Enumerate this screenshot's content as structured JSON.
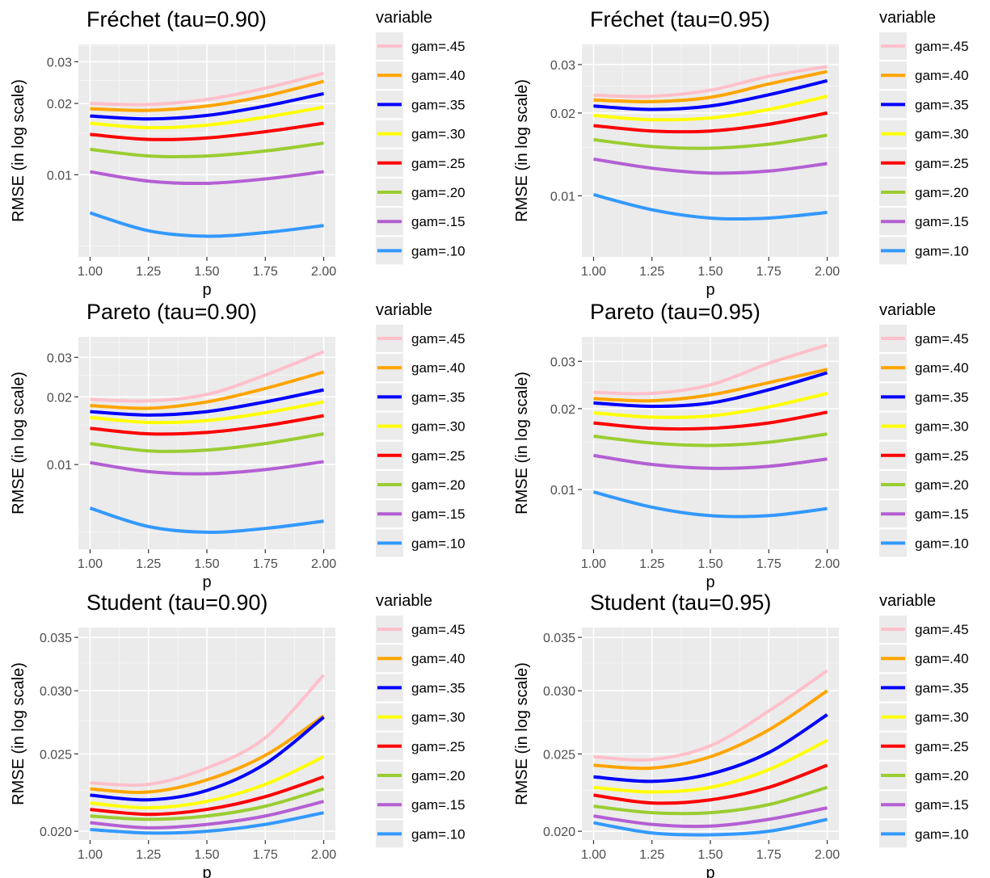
{
  "figure": {
    "legend_title": "variable",
    "xlabel": "p",
    "ylabel": "RMSE (in log scale)",
    "x_ticks": [
      "1.00",
      "1.25",
      "1.50",
      "1.75",
      "2.00"
    ],
    "colors": {
      "gam=.45": "#ffc0cb",
      "gam=.40": "#ffa500",
      "gam=.35": "#0000ff",
      "gam=.30": "#ffff00",
      "gam=.25": "#ff0000",
      "gam=.20": "#9acd32",
      "gam=.15": "#b45fd3",
      "gam=.10": "#3399ff"
    },
    "panel_background": "#ebebeb",
    "grid_color": "#ffffff"
  },
  "chart_data": [
    {
      "type": "line",
      "title": "Fréchet (tau=0.90)",
      "xlabel": "p",
      "ylabel": "RMSE (in log scale)",
      "y_scale": "log",
      "xlim": [
        0.95,
        2.05
      ],
      "ylim": [
        0.0045,
        0.0355
      ],
      "yticks": [
        0.01,
        0.02,
        0.03
      ],
      "ytick_labels": [
        "0.01",
        "0.02",
        "0.03"
      ],
      "x": [
        1.0,
        1.25,
        1.5,
        1.75,
        2.0
      ],
      "legend": "right",
      "series": [
        {
          "name": "gam=.45",
          "values": [
            0.02,
            0.0198,
            0.0208,
            0.0232,
            0.0268
          ]
        },
        {
          "name": "gam=.40",
          "values": [
            0.019,
            0.0187,
            0.0195,
            0.0215,
            0.0248
          ]
        },
        {
          "name": "gam=.35",
          "values": [
            0.0177,
            0.0172,
            0.0178,
            0.0195,
            0.022
          ]
        },
        {
          "name": "gam=.30",
          "values": [
            0.0165,
            0.0158,
            0.0162,
            0.0175,
            0.0193
          ]
        },
        {
          "name": "gam=.25",
          "values": [
            0.0148,
            0.0141,
            0.0143,
            0.0152,
            0.0165
          ]
        },
        {
          "name": "gam=.20",
          "values": [
            0.0128,
            0.012,
            0.012,
            0.0126,
            0.0136
          ]
        },
        {
          "name": "gam=.15",
          "values": [
            0.0103,
            0.0094,
            0.0092,
            0.0096,
            0.0103
          ]
        },
        {
          "name": "gam=.10",
          "values": [
            0.0069,
            0.0058,
            0.0055,
            0.0057,
            0.0061
          ]
        }
      ]
    },
    {
      "type": "line",
      "title": "Fréchet (tau=0.95)",
      "xlabel": "p",
      "ylabel": "RMSE (in log scale)",
      "y_scale": "log",
      "xlim": [
        0.95,
        2.05
      ],
      "ylim": [
        0.006,
        0.0355
      ],
      "yticks": [
        0.01,
        0.02,
        0.03
      ],
      "ytick_labels": [
        "0.01",
        "0.02",
        "0.03"
      ],
      "x": [
        1.0,
        1.25,
        1.5,
        1.75,
        2.0
      ],
      "legend": "right",
      "series": [
        {
          "name": "gam=.45",
          "values": [
            0.0232,
            0.023,
            0.0242,
            0.0272,
            0.0295
          ]
        },
        {
          "name": "gam=.40",
          "values": [
            0.0223,
            0.022,
            0.0228,
            0.0255,
            0.0283
          ]
        },
        {
          "name": "gam=.35",
          "values": [
            0.0212,
            0.0206,
            0.0212,
            0.0233,
            0.0262
          ]
        },
        {
          "name": "gam=.30",
          "values": [
            0.0196,
            0.0189,
            0.0192,
            0.0206,
            0.023
          ]
        },
        {
          "name": "gam=.25",
          "values": [
            0.018,
            0.0172,
            0.0172,
            0.0182,
            0.02
          ]
        },
        {
          "name": "gam=.20",
          "values": [
            0.016,
            0.0151,
            0.0149,
            0.0154,
            0.0166
          ]
        },
        {
          "name": "gam=.15",
          "values": [
            0.0136,
            0.0126,
            0.0121,
            0.0123,
            0.0131
          ]
        },
        {
          "name": "gam=.10",
          "values": [
            0.0101,
            0.0089,
            0.0083,
            0.0083,
            0.0087
          ]
        }
      ]
    },
    {
      "type": "line",
      "title": "Pareto (tau=0.90)",
      "xlabel": "p",
      "ylabel": "RMSE (in log scale)",
      "y_scale": "log",
      "xlim": [
        0.95,
        2.05
      ],
      "ylim": [
        0.0042,
        0.037
      ],
      "yticks": [
        0.01,
        0.02,
        0.03
      ],
      "ytick_labels": [
        "0.01",
        "0.02",
        "0.03"
      ],
      "x": [
        1.0,
        1.25,
        1.5,
        1.75,
        2.0
      ],
      "legend": "right",
      "series": [
        {
          "name": "gam=.45",
          "values": [
            0.0195,
            0.0192,
            0.0205,
            0.025,
            0.0318
          ]
        },
        {
          "name": "gam=.40",
          "values": [
            0.0183,
            0.0178,
            0.019,
            0.0218,
            0.0258
          ]
        },
        {
          "name": "gam=.35",
          "values": [
            0.0172,
            0.0166,
            0.0172,
            0.019,
            0.0215
          ]
        },
        {
          "name": "gam=.30",
          "values": [
            0.0162,
            0.0154,
            0.0157,
            0.017,
            0.019
          ]
        },
        {
          "name": "gam=.25",
          "values": [
            0.0145,
            0.0137,
            0.0139,
            0.0149,
            0.0165
          ]
        },
        {
          "name": "gam=.20",
          "values": [
            0.0124,
            0.0115,
            0.0116,
            0.0124,
            0.0137
          ]
        },
        {
          "name": "gam=.15",
          "values": [
            0.0102,
            0.0093,
            0.0091,
            0.0095,
            0.0103
          ]
        },
        {
          "name": "gam=.10",
          "values": [
            0.0064,
            0.0053,
            0.005,
            0.0052,
            0.0056
          ]
        }
      ]
    },
    {
      "type": "line",
      "title": "Pareto (tau=0.95)",
      "xlabel": "p",
      "ylabel": "RMSE (in log scale)",
      "y_scale": "log",
      "xlim": [
        0.95,
        2.05
      ],
      "ylim": [
        0.006,
        0.037
      ],
      "yticks": [
        0.01,
        0.02,
        0.03
      ],
      "ytick_labels": [
        "0.01",
        "0.02",
        "0.03"
      ],
      "x": [
        1.0,
        1.25,
        1.5,
        1.75,
        2.0
      ],
      "legend": "right",
      "series": [
        {
          "name": "gam=.45",
          "values": [
            0.023,
            0.0228,
            0.0245,
            0.0295,
            0.0345
          ]
        },
        {
          "name": "gam=.40",
          "values": [
            0.0218,
            0.0214,
            0.0225,
            0.025,
            0.028
          ]
        },
        {
          "name": "gam=.35",
          "values": [
            0.021,
            0.0204,
            0.021,
            0.0235,
            0.0272
          ]
        },
        {
          "name": "gam=.30",
          "values": [
            0.0193,
            0.0186,
            0.0188,
            0.0203,
            0.0228
          ]
        },
        {
          "name": "gam=.25",
          "values": [
            0.0177,
            0.0169,
            0.0169,
            0.0177,
            0.0194
          ]
        },
        {
          "name": "gam=.20",
          "values": [
            0.0158,
            0.0149,
            0.0146,
            0.015,
            0.0161
          ]
        },
        {
          "name": "gam=.15",
          "values": [
            0.0134,
            0.0124,
            0.012,
            0.0122,
            0.013
          ]
        },
        {
          "name": "gam=.10",
          "values": [
            0.0098,
            0.0086,
            0.008,
            0.008,
            0.0085
          ]
        }
      ]
    },
    {
      "type": "line",
      "title": "Student (tau=0.90)",
      "xlabel": "p",
      "ylabel": "RMSE (in log scale)",
      "y_scale": "log",
      "xlim": [
        0.95,
        2.05
      ],
      "ylim": [
        0.0195,
        0.036
      ],
      "yticks": [
        0.02,
        0.025,
        0.03,
        0.035
      ],
      "ytick_labels": [
        "0.020",
        "0.025",
        "0.030",
        "0.035"
      ],
      "x": [
        1.0,
        1.25,
        1.5,
        1.75,
        2.0
      ],
      "legend": "right",
      "series": [
        {
          "name": "gam=.45",
          "values": [
            0.023,
            0.0229,
            0.024,
            0.0262,
            0.0314
          ]
        },
        {
          "name": "gam=.40",
          "values": [
            0.0226,
            0.0224,
            0.0232,
            0.0249,
            0.0279
          ]
        },
        {
          "name": "gam=.35",
          "values": [
            0.0222,
            0.0219,
            0.0225,
            0.0243,
            0.0278
          ]
        },
        {
          "name": "gam=.30",
          "values": [
            0.0217,
            0.0214,
            0.0218,
            0.0229,
            0.0248
          ]
        },
        {
          "name": "gam=.25",
          "values": [
            0.0213,
            0.021,
            0.0213,
            0.0221,
            0.0234
          ]
        },
        {
          "name": "gam=.20",
          "values": [
            0.0209,
            0.0207,
            0.0209,
            0.0215,
            0.0226
          ]
        },
        {
          "name": "gam=.15",
          "values": [
            0.0205,
            0.0202,
            0.0204,
            0.0209,
            0.0218
          ]
        },
        {
          "name": "gam=.10",
          "values": [
            0.0201,
            0.0199,
            0.02,
            0.0204,
            0.0211
          ]
        }
      ]
    },
    {
      "type": "line",
      "title": "Student (tau=0.95)",
      "xlabel": "p",
      "ylabel": "RMSE (in log scale)",
      "y_scale": "log",
      "xlim": [
        0.95,
        2.05
      ],
      "ylim": [
        0.0195,
        0.036
      ],
      "yticks": [
        0.02,
        0.025,
        0.03,
        0.035
      ],
      "ytick_labels": [
        "0.020",
        "0.025",
        "0.030",
        "0.035"
      ],
      "x": [
        1.0,
        1.25,
        1.5,
        1.75,
        2.0
      ],
      "legend": "right",
      "series": [
        {
          "name": "gam=.45",
          "values": [
            0.0248,
            0.0246,
            0.0256,
            0.0283,
            0.0318
          ]
        },
        {
          "name": "gam=.40",
          "values": [
            0.0242,
            0.024,
            0.0248,
            0.0268,
            0.03
          ]
        },
        {
          "name": "gam=.35",
          "values": [
            0.0234,
            0.0231,
            0.0236,
            0.0251,
            0.028
          ]
        },
        {
          "name": "gam=.30",
          "values": [
            0.0227,
            0.0224,
            0.0227,
            0.0239,
            0.026
          ]
        },
        {
          "name": "gam=.25",
          "values": [
            0.0222,
            0.0217,
            0.0219,
            0.0227,
            0.0242
          ]
        },
        {
          "name": "gam=.20",
          "values": [
            0.0215,
            0.0211,
            0.0211,
            0.0216,
            0.0227
          ]
        },
        {
          "name": "gam=.15",
          "values": [
            0.0209,
            0.0204,
            0.0203,
            0.0207,
            0.0214
          ]
        },
        {
          "name": "gam=.10",
          "values": [
            0.0205,
            0.0199,
            0.0198,
            0.02,
            0.0207
          ]
        }
      ]
    }
  ]
}
